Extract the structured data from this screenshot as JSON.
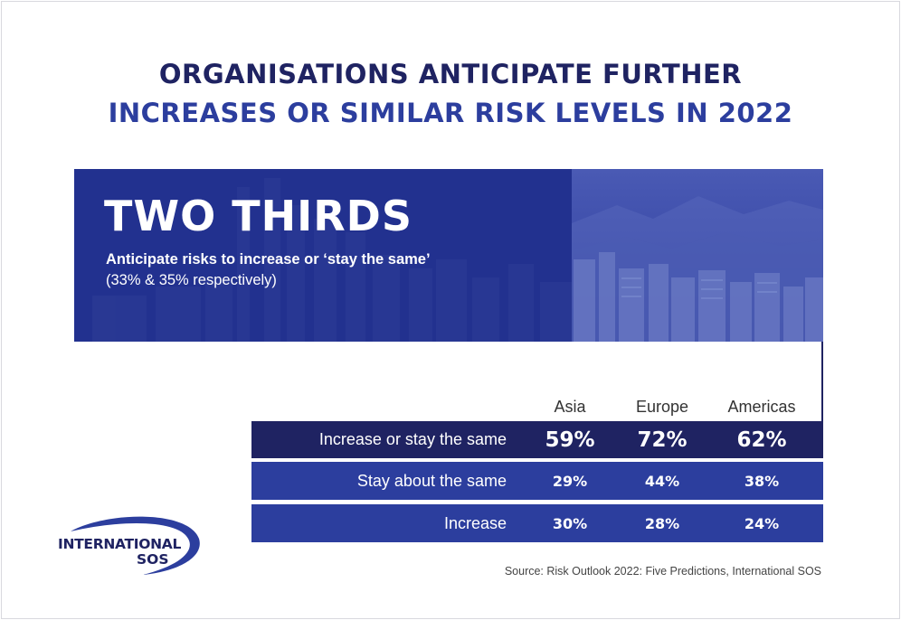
{
  "header": {
    "title_line1": "ORGANISATIONS ANTICIPATE FURTHER",
    "title_line2": "INCREASES OR SIMILAR RISK LEVELS IN 2022"
  },
  "banner": {
    "headline": "TWO THIRDS",
    "subtitle": "Anticipate risks to increase or ‘stay the same’",
    "note": "(33% & 35% respectively)"
  },
  "chart_data": {
    "type": "table",
    "columns": [
      "Asia",
      "Europe",
      "Americas"
    ],
    "rows": [
      {
        "label": "Increase or stay the same",
        "values": [
          "59%",
          "72%",
          "62%"
        ]
      },
      {
        "label": "Stay about the same",
        "values": [
          "29%",
          "44%",
          "38%"
        ]
      },
      {
        "label": "Increase",
        "values": [
          "30%",
          "28%",
          "24%"
        ]
      }
    ]
  },
  "logo": {
    "line1": "INTERNATIONAL",
    "line2": "SOS"
  },
  "source": "Source: Risk Outlook 2022: Five Predictions, International SOS",
  "colors": {
    "navy": "#1f2362",
    "royal_blue": "#2c3e9e",
    "banner_blue": "#22318f"
  }
}
